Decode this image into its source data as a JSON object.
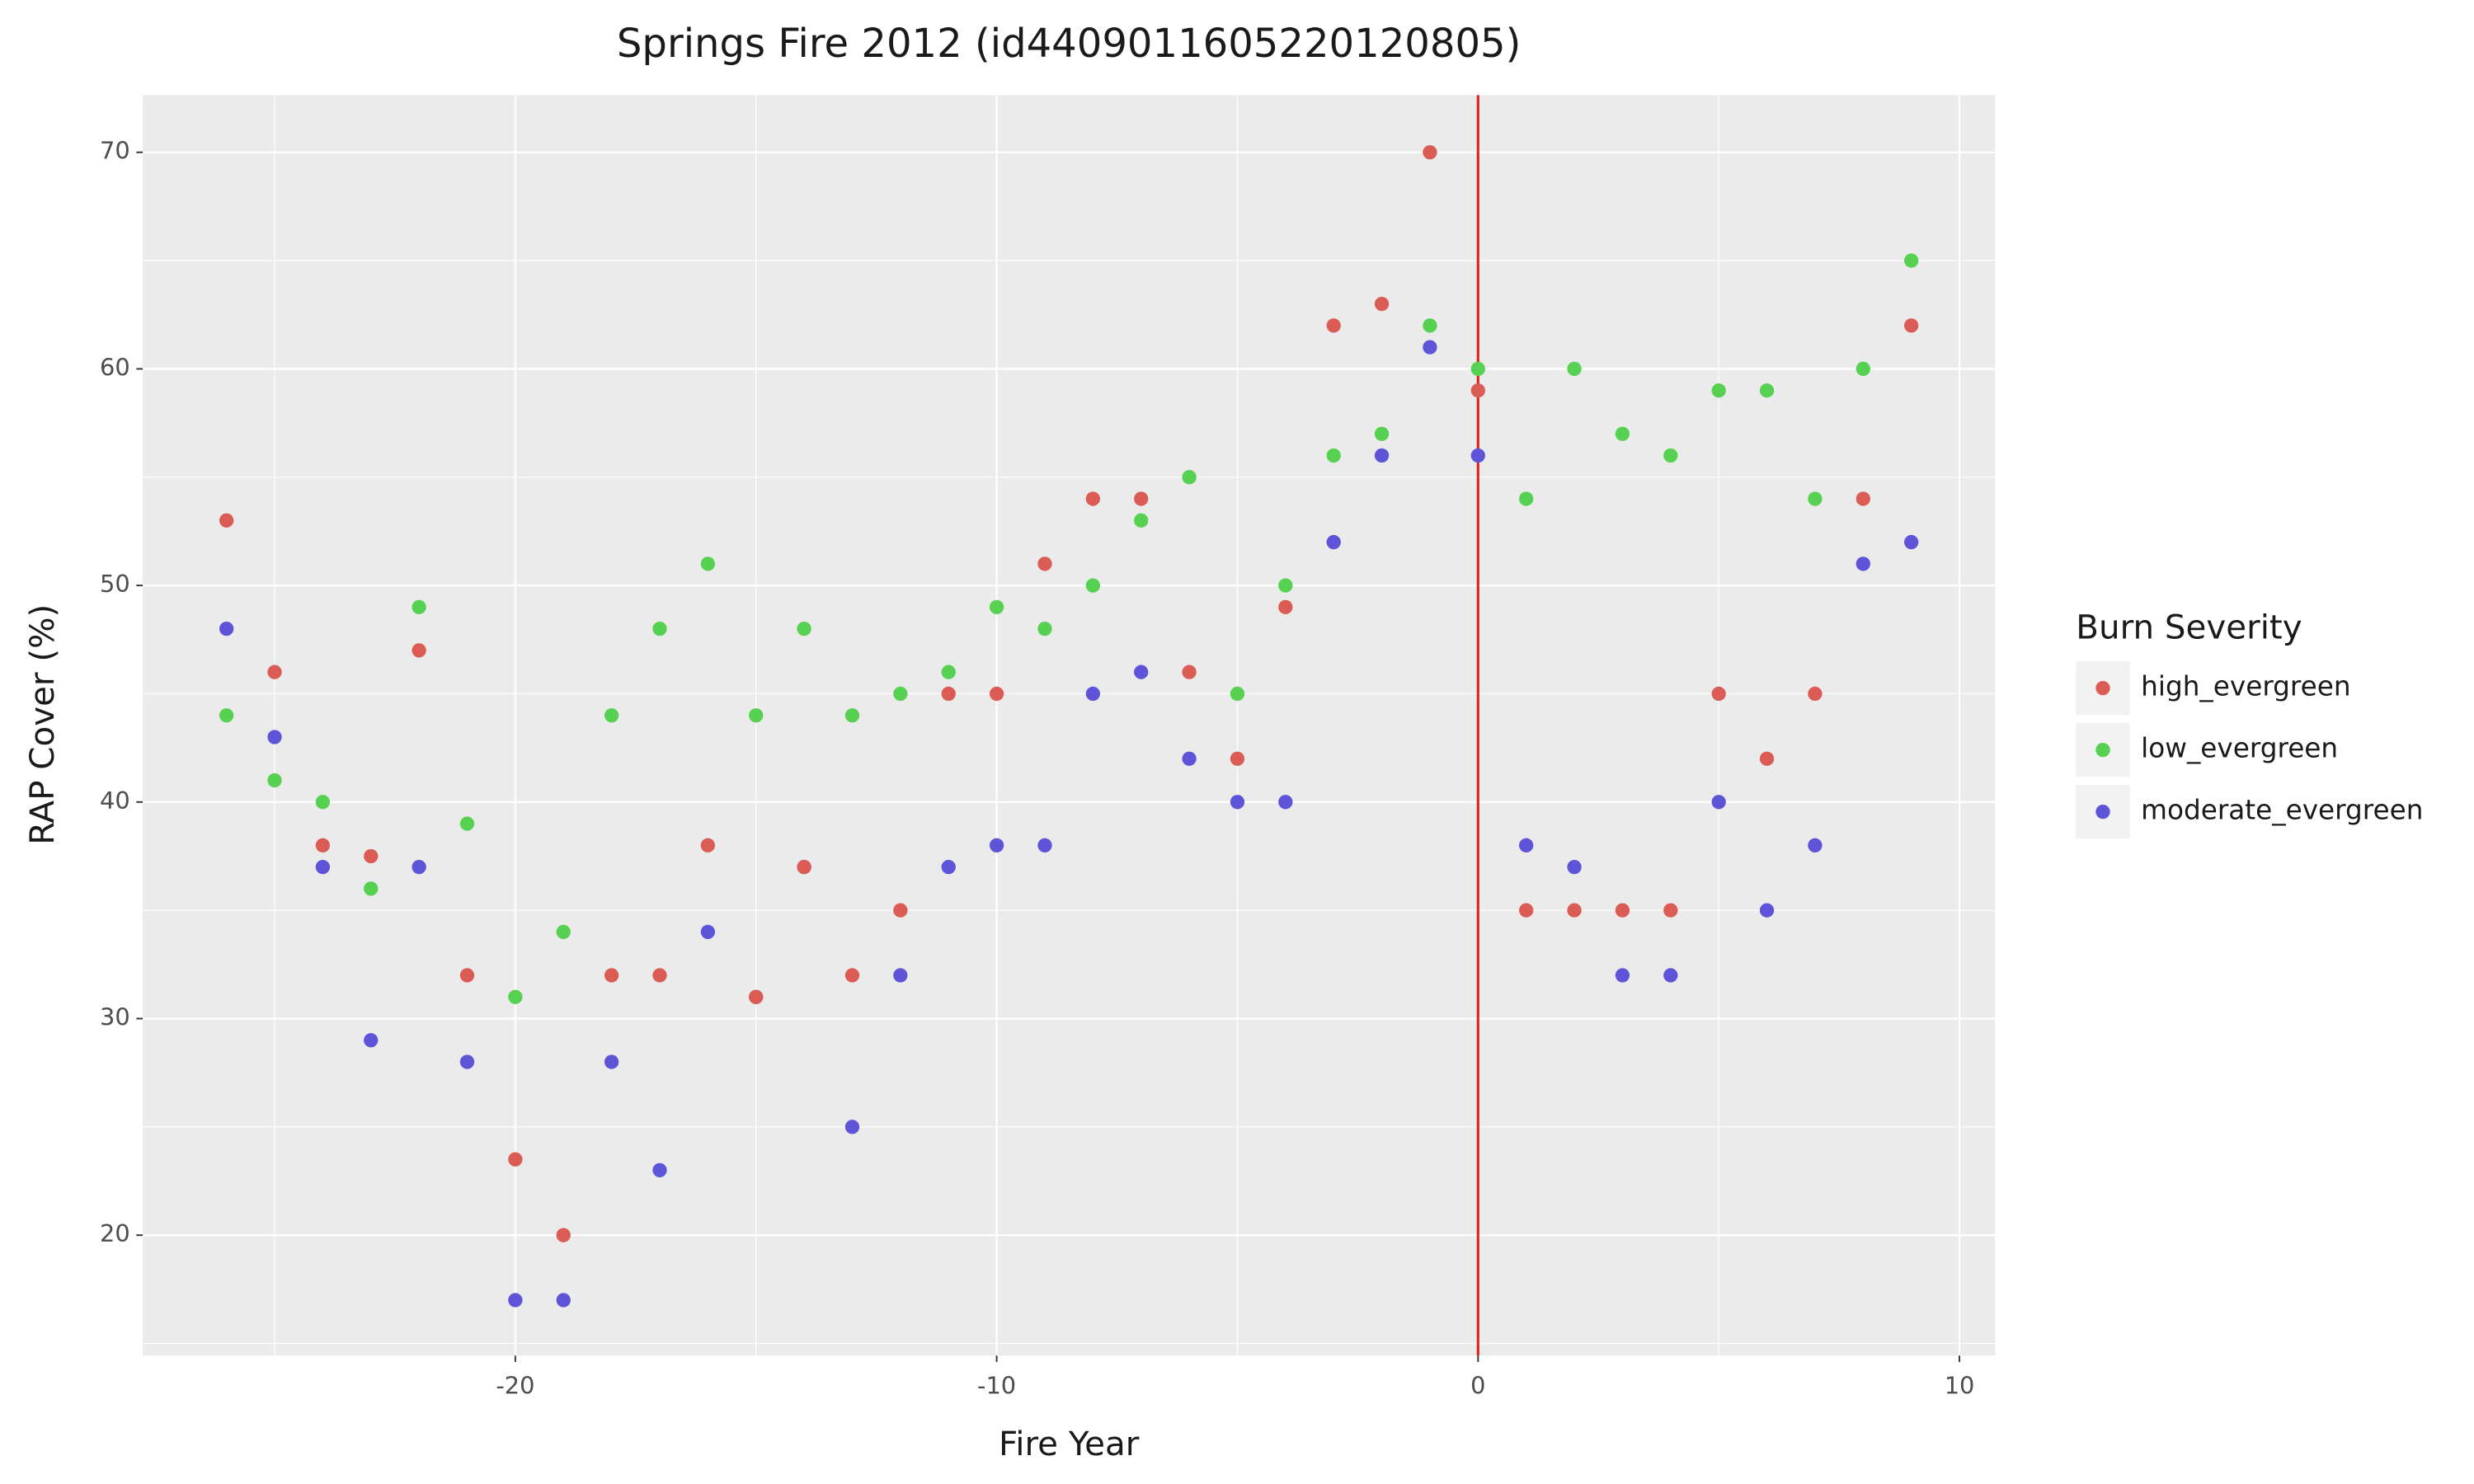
{
  "chart_data": {
    "type": "scatter",
    "title": "Springs Fire 2012 (id4409011605220120805)",
    "x_label": "Fire Year",
    "y_label": "RAP Cover (%)",
    "legend_title": "Burn Severity",
    "x": [
      -26,
      -25,
      -24,
      -23,
      -22,
      -21,
      -20,
      -19,
      -18,
      -17,
      -16,
      -15,
      -14,
      -13,
      -12,
      -11,
      -10,
      -9,
      -8,
      -7,
      -6,
      -5,
      -4,
      -3,
      -2,
      -1,
      0,
      1,
      2,
      3,
      4,
      5,
      6,
      7,
      8,
      9
    ],
    "series": [
      {
        "name": "high_evergreen",
        "color": "#db5c55",
        "values": [
          53,
          46,
          38,
          37.5,
          47,
          32,
          23.5,
          20,
          32,
          32,
          38,
          31,
          37,
          32,
          35,
          45,
          45,
          51,
          54,
          54,
          46,
          42,
          49,
          62,
          63,
          70,
          59,
          35,
          35,
          35,
          35,
          45,
          42,
          45,
          54,
          62
        ]
      },
      {
        "name": "low_evergreen",
        "color": "#56d152",
        "values": [
          44,
          41,
          40,
          36,
          49,
          39,
          31,
          34,
          44,
          48,
          51,
          44,
          48,
          44,
          45,
          46,
          49,
          48,
          50,
          53,
          55,
          45,
          50,
          56,
          57,
          62,
          60,
          54,
          60,
          57,
          56,
          59,
          59,
          54,
          60,
          65
        ]
      },
      {
        "name": "moderate_evergreen",
        "color": "#5e54d8",
        "values": [
          48,
          43,
          37,
          29,
          37,
          28,
          17,
          17,
          28,
          23,
          34,
          31,
          37,
          25,
          32,
          37,
          38,
          38,
          45,
          46,
          42,
          40,
          40,
          52,
          56,
          61,
          56,
          38,
          37,
          32,
          32,
          40,
          35,
          38,
          51,
          52
        ]
      }
    ],
    "vline": {
      "value": 0,
      "color": "#e0211d"
    },
    "xlim": [
      -27.74,
      10.74
    ],
    "ylim": [
      14.44,
      72.64
    ],
    "xticks": [
      -20,
      -10,
      0,
      10
    ],
    "yticks": [
      20,
      30,
      40,
      50,
      60,
      70
    ],
    "grid": true,
    "legend_position": "right"
  }
}
